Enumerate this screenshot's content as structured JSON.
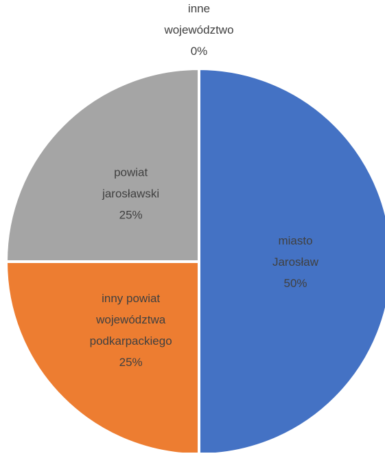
{
  "chart_data": {
    "type": "pie",
    "title": "",
    "start_angle_deg": 0,
    "direction": "clockwise",
    "separator_color": "#ffffff",
    "slices": [
      {
        "label": "miasto Jarosław",
        "label_lines": [
          "miasto",
          "Jarosław"
        ],
        "value_pct": 50,
        "value_label": "50%",
        "color": "#4472C4"
      },
      {
        "label": "inny powiat województwa podkarpackiego",
        "label_lines": [
          "inny powiat",
          "województwa",
          "podkarpackiego"
        ],
        "value_pct": 25,
        "value_label": "25%",
        "color": "#ED7D31"
      },
      {
        "label": "powiat jarosławski",
        "label_lines": [
          "powiat",
          "jarosławski"
        ],
        "value_pct": 25,
        "value_label": "25%",
        "color": "#A5A5A5"
      },
      {
        "label": "inne województwo",
        "label_lines": [
          "inne",
          "województwo"
        ],
        "value_pct": 0,
        "value_label": "0%",
        "color": "#FFC000"
      }
    ]
  }
}
